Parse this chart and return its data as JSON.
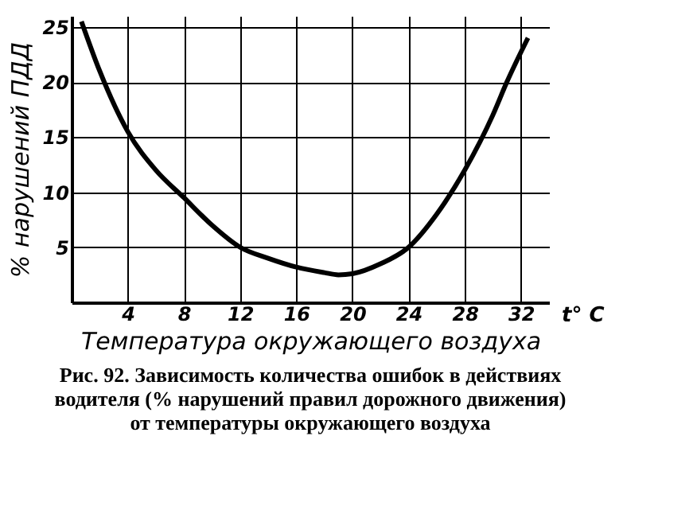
{
  "chart_data": {
    "type": "line",
    "xlabel": "Температура окружающего воздуха",
    "ylabel": "% нарушений ПДД",
    "x": [
      0.7,
      2,
      4,
      6,
      8,
      10,
      12,
      14,
      16,
      18,
      19,
      20,
      22,
      24,
      26,
      28,
      30,
      31,
      32.5
    ],
    "series": [
      {
        "color": "#000000",
        "values": [
          25.5,
          21,
          15.5,
          12,
          9.5,
          7,
          5,
          4,
          3.2,
          2.7,
          2.5,
          2.6,
          3.5,
          5,
          8,
          12,
          17,
          20,
          24
        ]
      }
    ],
    "xlim": [
      0,
      34
    ],
    "xticks": [
      4,
      8,
      12,
      16,
      20,
      24,
      28,
      32
    ],
    "ylim": [
      0,
      26
    ],
    "yticks": [
      5,
      10,
      15,
      20,
      25
    ],
    "grid": true,
    "marker": "none",
    "line_style": "solid",
    "annotations": [
      "t° C",
      "Рис. 92. Зависимость количества ошибок в действиях водителя (% нарушений правил дорожного движения) от температуры окружающего воздуха"
    ]
  }
}
